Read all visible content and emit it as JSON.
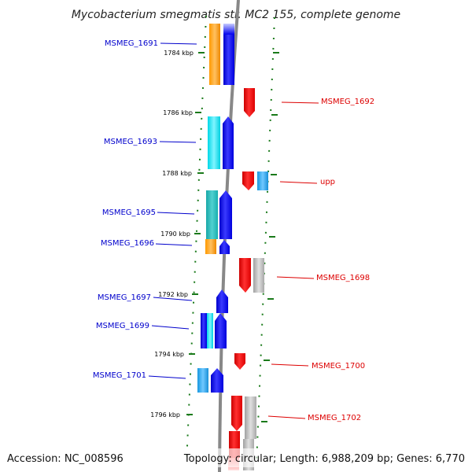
{
  "header": {
    "title": "Mycobacterium smegmatis str. MC2 155, complete genome"
  },
  "footer": {
    "accession": "Accession: NC_008596",
    "summary": "Topology: circular; Length: 6,988,209 bp; Genes: 6,770"
  },
  "colors": {
    "forward_label": "#0000cc",
    "reverse_label": "#dd0000",
    "cds_forward": "#0000ee",
    "cds_reverse": "#ee0000",
    "pseudo": "#bbbbbb",
    "cog_orange": "#ff9900",
    "cog_cyan": "#00e0ee",
    "cog_teal": "#20b8b8",
    "cog_lightblue": "#20a8e8",
    "backbone": "#888888",
    "tick": "#1a7a1a"
  },
  "ticks": [
    {
      "label": "1784 kbp"
    },
    {
      "label": "1786 kbp"
    },
    {
      "label": "1788 kbp"
    },
    {
      "label": "1790 kbp"
    },
    {
      "label": "1792 kbp"
    },
    {
      "label": "1794 kbp"
    },
    {
      "label": "1796 kbp"
    }
  ],
  "gene_labels": [
    {
      "text": "MSMEG_1691",
      "strand": "forward"
    },
    {
      "text": "MSMEG_1693",
      "strand": "forward"
    },
    {
      "text": "MSMEG_1695",
      "strand": "forward"
    },
    {
      "text": "MSMEG_1696",
      "strand": "forward"
    },
    {
      "text": "MSMEG_1697",
      "strand": "forward"
    },
    {
      "text": "MSMEG_1699",
      "strand": "forward"
    },
    {
      "text": "MSMEG_1701",
      "strand": "forward"
    },
    {
      "text": "MSMEG_1692",
      "strand": "reverse"
    },
    {
      "text": "upp",
      "strand": "reverse"
    },
    {
      "text": "MSMEG_1698",
      "strand": "reverse"
    },
    {
      "text": "MSMEG_1700",
      "strand": "reverse"
    },
    {
      "text": "MSMEG_1702",
      "strand": "reverse"
    }
  ]
}
